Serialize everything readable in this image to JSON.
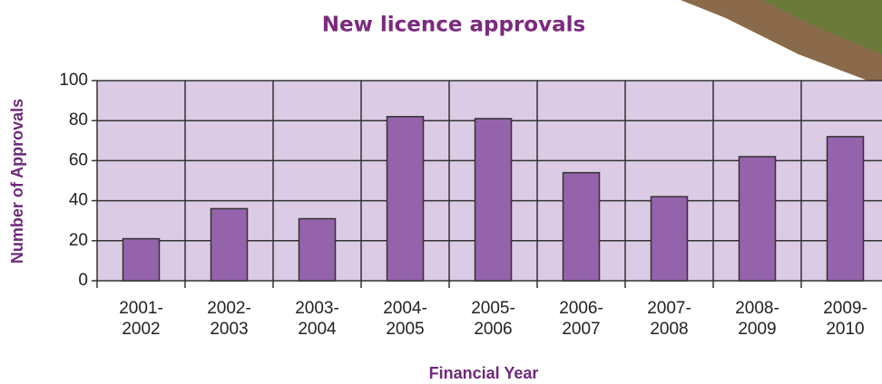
{
  "chart_data": {
    "type": "bar",
    "title": "New licence approvals",
    "x_label": "Financial Year",
    "y_label": "Number of Approvals",
    "categories": [
      "2001-2002",
      "2002-2003",
      "2003-2004",
      "2004-2005",
      "2005-2006",
      "2006-2007",
      "2007-2008",
      "2008-2009",
      "2009-2010"
    ],
    "values": [
      21,
      36,
      31,
      82,
      81,
      54,
      42,
      62,
      72
    ],
    "color": "#9563ab",
    "ylim": [
      0,
      100
    ],
    "yticks": [
      0,
      20,
      40,
      60,
      80,
      100
    ],
    "grid": true
  }
}
